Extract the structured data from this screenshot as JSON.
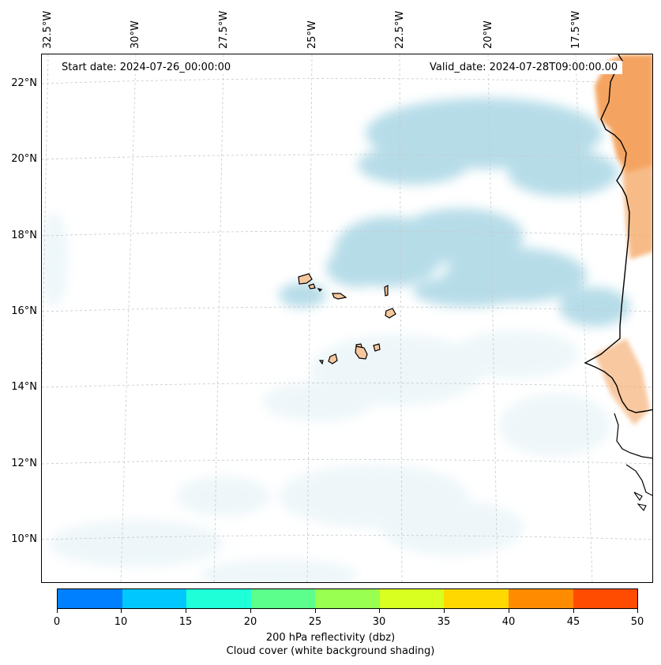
{
  "map": {
    "start_label": "Start date: 2024-07-26_00:00:00",
    "valid_label": "Valid_date: 2024-07-28T09:00:00.00",
    "longitude_labels": [
      "32.5°W",
      "30°W",
      "27.5°W",
      "25°W",
      "22.5°W",
      "20°W",
      "17.5°W"
    ],
    "latitude_labels": [
      "22°N",
      "20°N",
      "18°N",
      "16°N",
      "14°N",
      "12°N",
      "10°N"
    ]
  },
  "colorbar": {
    "title": "200 hPa reflectivity (dbz)",
    "subtitle": "Cloud cover (white background shading)",
    "ticks": [
      "0",
      "10",
      "15",
      "20",
      "25",
      "30",
      "35",
      "40",
      "45",
      "50"
    ],
    "colors": [
      "#0080ff",
      "#00c8ff",
      "#1fffd8",
      "#5cff8c",
      "#99ff50",
      "#d8ff1f",
      "#ffd800",
      "#ff8c00",
      "#ff4c00"
    ]
  },
  "colors": {
    "cloud": "#a8d8e6",
    "land_warm": "#f4a460",
    "coast": "#000000"
  }
}
